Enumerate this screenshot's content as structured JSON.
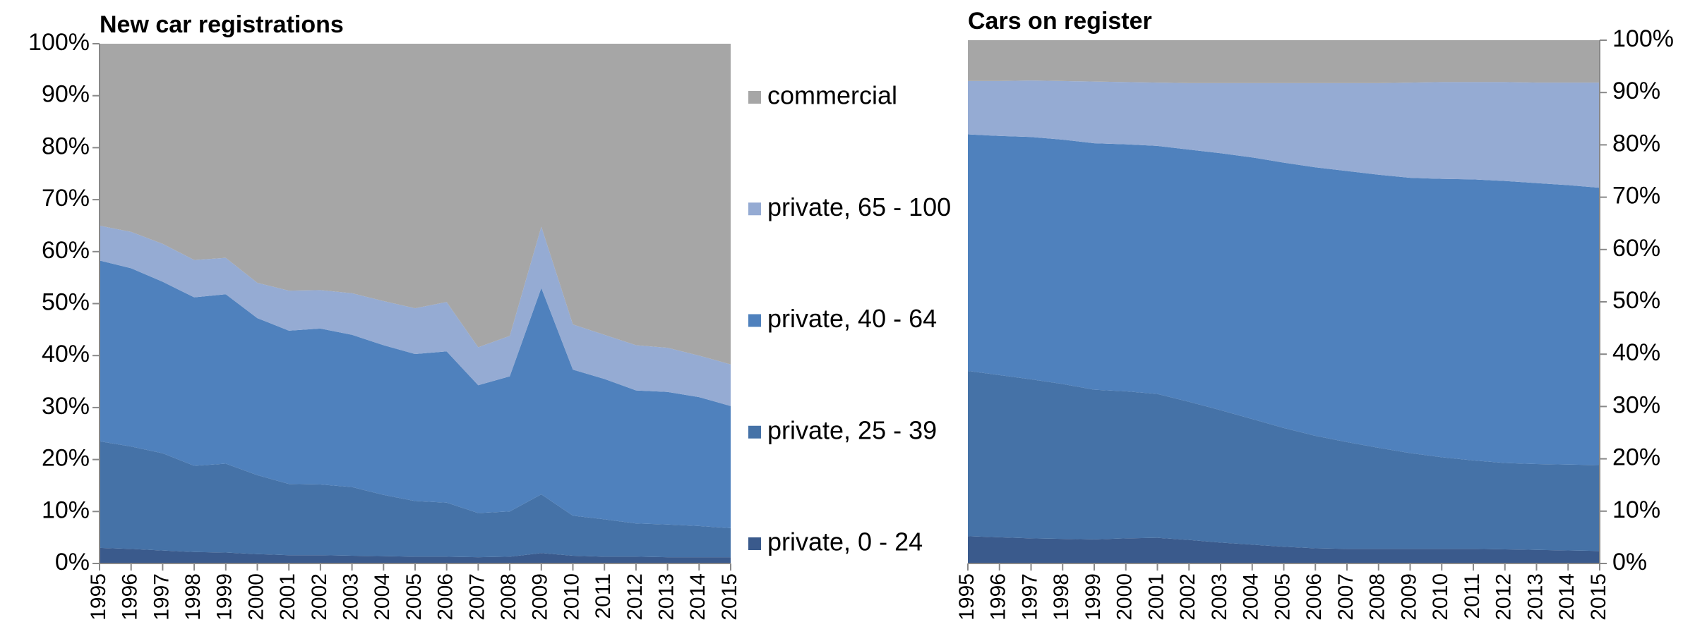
{
  "chart_data": [
    {
      "type": "stacked_area",
      "title": "New car registrations",
      "categories": [
        "1995",
        "1996",
        "1997",
        "1998",
        "1999",
        "2000",
        "2001",
        "2002",
        "2003",
        "2004",
        "2005",
        "2006",
        "2007",
        "2008",
        "2009",
        "2010",
        "2011",
        "2012",
        "2013",
        "2014",
        "2015"
      ],
      "ylim": [
        0,
        100
      ],
      "yticks": [
        {
          "value": 0,
          "label": "0%"
        },
        {
          "value": 10,
          "label": "10%"
        },
        {
          "value": 20,
          "label": "20%"
        },
        {
          "value": 30,
          "label": "30%"
        },
        {
          "value": 40,
          "label": "40%"
        },
        {
          "value": 50,
          "label": "50%"
        },
        {
          "value": 60,
          "label": "60%"
        },
        {
          "value": 70,
          "label": "70%"
        },
        {
          "value": 80,
          "label": "80%"
        },
        {
          "value": 90,
          "label": "90%"
        },
        {
          "value": 100,
          "label": "100%"
        }
      ],
      "legend": "right",
      "series": [
        {
          "name": "private, 0 - 24",
          "color": "#3a5a8c",
          "values": [
            3,
            2.8,
            2.5,
            2.2,
            2.1,
            1.8,
            1.6,
            1.6,
            1.5,
            1.4,
            1.3,
            1.3,
            1.2,
            1.3,
            2,
            1.5,
            1.3,
            1.3,
            1.2,
            1.2,
            1.2
          ]
        },
        {
          "name": "private, 25 - 39",
          "color": "#4572a7",
          "values": [
            20.5,
            19.7,
            18.7,
            16.6,
            17.1,
            15.2,
            13.7,
            13.6,
            13.2,
            11.8,
            10.7,
            10.4,
            8.5,
            8.7,
            11.3,
            7.7,
            7.2,
            6.4,
            6.3,
            6.0,
            5.6
          ]
        },
        {
          "name": "private, 40 - 64",
          "color": "#4f81bd",
          "values": [
            34.8,
            34.3,
            33.0,
            32.4,
            32.6,
            30.2,
            29.5,
            30.0,
            29.3,
            28.8,
            28.3,
            29.1,
            24.6,
            26.0,
            39.7,
            28.1,
            27.0,
            25.6,
            25.5,
            24.8,
            23.5
          ]
        },
        {
          "name": "private, 65 - 100",
          "color": "#95abd3",
          "values": [
            6.7,
            7.0,
            7.3,
            7.2,
            7.0,
            6.8,
            7.7,
            7.4,
            8.0,
            8.5,
            8.8,
            9.5,
            7.3,
            7.8,
            11.8,
            8.7,
            8.5,
            8.7,
            8.5,
            8.0,
            8.0
          ]
        },
        {
          "name": "commercial",
          "color": "#a6a6a6",
          "values": [
            35,
            36.2,
            38.5,
            41.6,
            41.2,
            46,
            47.5,
            47.4,
            48,
            49.5,
            50.9,
            49.7,
            58.4,
            56.2,
            35.2,
            54,
            56,
            58,
            58.5,
            60,
            61.7
          ]
        }
      ]
    },
    {
      "type": "stacked_area",
      "title": "Cars on register",
      "categories": [
        "1995",
        "1996",
        "1997",
        "1998",
        "1999",
        "2000",
        "2001",
        "2002",
        "2003",
        "2004",
        "2005",
        "2006",
        "2007",
        "2008",
        "2009",
        "2010",
        "2011",
        "2012",
        "2013",
        "2014",
        "2015"
      ],
      "ylim": [
        0,
        100
      ],
      "yticks": [
        {
          "value": 0,
          "label": "0%"
        },
        {
          "value": 10,
          "label": "10%"
        },
        {
          "value": 20,
          "label": "20%"
        },
        {
          "value": 30,
          "label": "30%"
        },
        {
          "value": 40,
          "label": "40%"
        },
        {
          "value": 50,
          "label": "50%"
        },
        {
          "value": 60,
          "label": "60%"
        },
        {
          "value": 70,
          "label": "70%"
        },
        {
          "value": 80,
          "label": "80%"
        },
        {
          "value": 90,
          "label": "90%"
        },
        {
          "value": 100,
          "label": "100%"
        }
      ],
      "yaxis_side": "right",
      "series": [
        {
          "color": "#3a5a8c",
          "values": [
            5.2,
            5,
            4.8,
            4.7,
            4.6,
            4.8,
            4.9,
            4.5,
            4,
            3.6,
            3.2,
            2.9,
            2.8,
            2.8,
            2.8,
            2.8,
            2.8,
            2.7,
            2.6,
            2.5,
            2.4
          ]
        },
        {
          "color": "#4572a7",
          "values": [
            31.6,
            31.0,
            30.4,
            29.6,
            28.6,
            28.1,
            27.5,
            26.4,
            25.3,
            24.0,
            22.7,
            21.5,
            20.4,
            19.3,
            18.3,
            17.5,
            16.9,
            16.5,
            16.4,
            16.4,
            16.4
          ]
        },
        {
          "color": "#4f81bd",
          "values": [
            45.2,
            45.7,
            46.3,
            46.7,
            47.1,
            47.2,
            47.4,
            48.2,
            49.1,
            50.0,
            50.7,
            51.3,
            51.8,
            52.2,
            52.6,
            53.2,
            53.7,
            53.9,
            53.7,
            53.4,
            53.0
          ]
        },
        {
          "color": "#95abd3",
          "values": [
            10.2,
            10.5,
            10.8,
            11.2,
            11.8,
            11.9,
            12.1,
            12.7,
            13.4,
            14.2,
            15.2,
            16.1,
            16.8,
            17.5,
            18.2,
            18.5,
            18.6,
            18.9,
            19.2,
            19.6,
            20.1
          ]
        },
        {
          "color": "#a6a6a6",
          "values": [
            7.8,
            7.8,
            7.7,
            7.8,
            7.9,
            8.0,
            8.1,
            8.2,
            8.2,
            8.2,
            8.2,
            8.2,
            8.2,
            8.2,
            8.1,
            8.0,
            8.0,
            8.0,
            8.1,
            8.1,
            8.1
          ]
        }
      ]
    }
  ]
}
